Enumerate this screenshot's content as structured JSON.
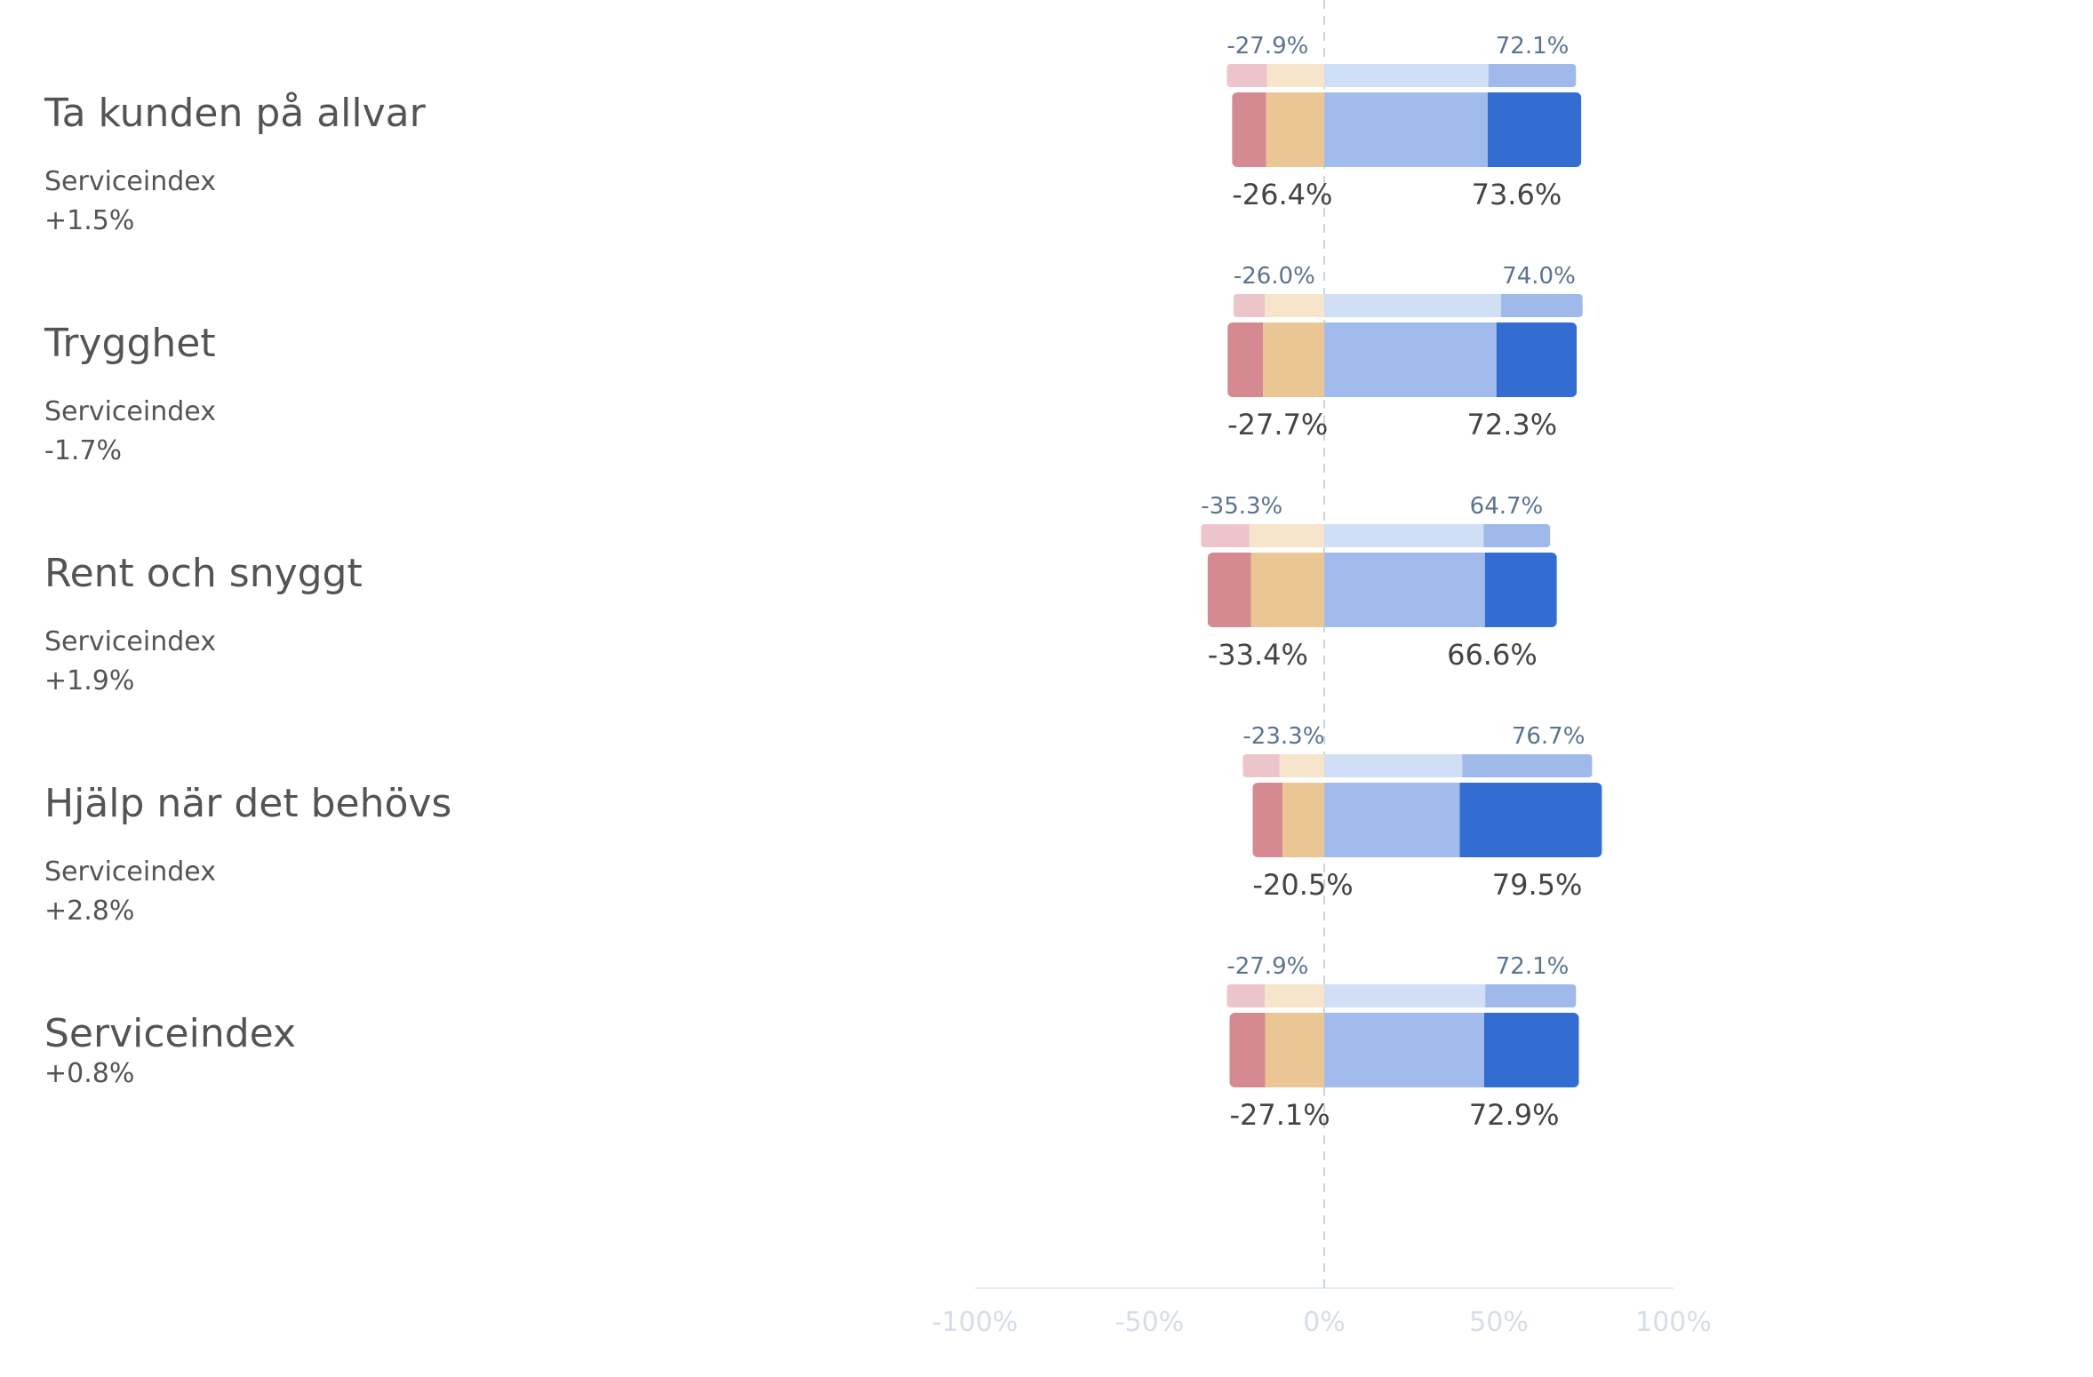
{
  "chart_data": {
    "type": "bar",
    "orientation": "horizontal-diverging-stacked",
    "xlim": [
      -100,
      100
    ],
    "x_ticks": [
      "-100%",
      "-50%",
      "0%",
      "50%",
      "100%"
    ],
    "zero_line": "dashed",
    "segment_colors": {
      "current": [
        "#d48a90",
        "#ebc695",
        "#a1bbec",
        "#346dd2"
      ],
      "previous": [
        "#ebc5ca",
        "#f6e4cb",
        "#d0def6",
        "#9fb9ea"
      ]
    },
    "categories": [
      {
        "title": "Ta kunden på allvar",
        "sub_label": "Serviceindex",
        "change": "+1.5%",
        "previous": {
          "values": [
            -11.5,
            -16.4,
            47.0,
            25.1
          ],
          "neg_label": "-27.9%",
          "pos_label": "72.1%"
        },
        "current": {
          "values": [
            -9.8,
            -16.6,
            46.8,
            26.8
          ],
          "neg_label": "-26.4%",
          "pos_label": "73.6%"
        }
      },
      {
        "title": "Trygghet",
        "sub_label": "Serviceindex",
        "change": "-1.7%",
        "previous": {
          "values": [
            -9.0,
            -17.0,
            50.6,
            23.4
          ],
          "neg_label": "-26.0%",
          "pos_label": "74.0%"
        },
        "current": {
          "values": [
            -10.2,
            -17.5,
            49.3,
            23.0
          ],
          "neg_label": "-27.7%",
          "pos_label": "72.3%"
        }
      },
      {
        "title": "Rent och snyggt",
        "sub_label": "Serviceindex",
        "change": "+1.9%",
        "previous": {
          "values": [
            -13.8,
            -21.5,
            45.6,
            19.1
          ],
          "neg_label": "-35.3%",
          "pos_label": "64.7%"
        },
        "current": {
          "values": [
            -12.4,
            -21.0,
            46.0,
            20.6
          ],
          "neg_label": "-33.4%",
          "pos_label": "66.6%"
        }
      },
      {
        "title": "Hjälp när det behövs",
        "sub_label": "Serviceindex",
        "change": "+2.8%",
        "previous": {
          "values": [
            -10.5,
            -12.8,
            39.5,
            37.2
          ],
          "neg_label": "-23.3%",
          "pos_label": "76.7%"
        },
        "current": {
          "values": [
            -8.6,
            -11.9,
            38.8,
            40.7
          ],
          "neg_label": "-20.5%",
          "pos_label": "79.5%"
        }
      },
      {
        "title": "Serviceindex",
        "sub_label": "",
        "change": "+0.8%",
        "previous": {
          "values": [
            -10.9,
            -17.0,
            46.1,
            26.0
          ],
          "neg_label": "-27.9%",
          "pos_label": "72.1%"
        },
        "current": {
          "values": [
            -10.2,
            -16.9,
            45.8,
            27.1
          ],
          "neg_label": "-27.1%",
          "pos_label": "72.9%"
        }
      }
    ]
  }
}
